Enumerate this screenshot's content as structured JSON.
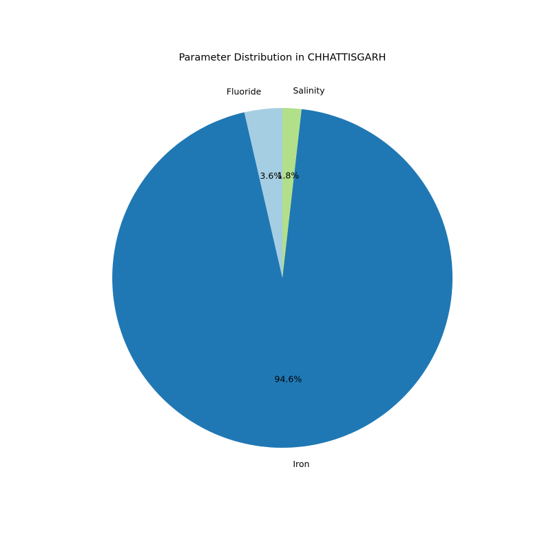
{
  "chart_data": {
    "type": "pie",
    "title": "Parameter Distribution in CHHATTISGARH",
    "slices": [
      {
        "label": "Fluoride",
        "value": 3.6,
        "pct_label": "3.6%",
        "color": "#a6cee3"
      },
      {
        "label": "Iron",
        "value": 94.6,
        "pct_label": "94.6%",
        "color": "#1f78b4"
      },
      {
        "label": "Salinity",
        "value": 1.8,
        "pct_label": "1.8%",
        "color": "#b2df8a"
      }
    ],
    "start_angle_deg": 90,
    "direction": "counterclockwise"
  }
}
